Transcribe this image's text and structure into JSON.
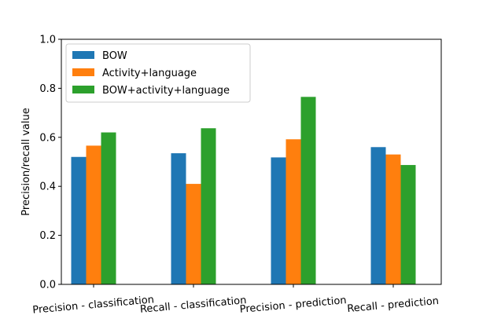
{
  "chart_data": {
    "type": "bar",
    "title": "",
    "xlabel": "",
    "ylabel": "Precision/recall value",
    "ylim": [
      0,
      1.0
    ],
    "yticks": [
      "0.0",
      "0.2",
      "0.4",
      "0.6",
      "0.8",
      "1.0"
    ],
    "grid": false,
    "legend_position": "top-left",
    "categories": [
      "Precision - classification",
      "Recall - classification",
      "Precision - prediction",
      "Recall - prediction"
    ],
    "series": [
      {
        "name": "BOW",
        "color": "#1f77b4",
        "values": [
          0.52,
          0.535,
          0.518,
          0.56
        ]
      },
      {
        "name": "Activity+language",
        "color": "#ff7f0e",
        "values": [
          0.566,
          0.41,
          0.592,
          0.53
        ]
      },
      {
        "name": "BOW+activity+language",
        "color": "#2ca02c",
        "values": [
          0.62,
          0.637,
          0.765,
          0.487
        ]
      }
    ]
  }
}
